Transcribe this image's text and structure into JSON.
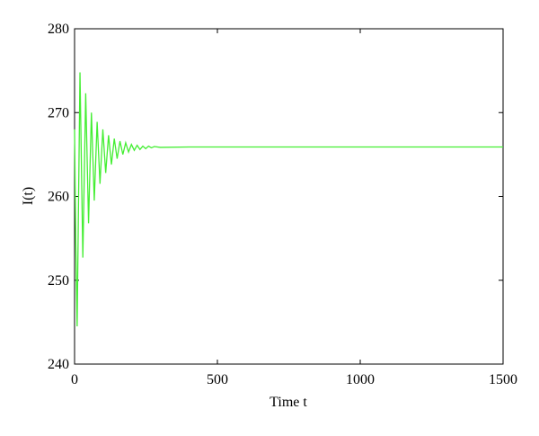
{
  "chart_data": {
    "type": "line",
    "x_label": "Time t",
    "y_label": "I(t)",
    "x": [
      0,
      4,
      9,
      19,
      29,
      39,
      49,
      59,
      69,
      79,
      89,
      99,
      109,
      119,
      129,
      139,
      149,
      159,
      169,
      179,
      189,
      199,
      209,
      219,
      229,
      239,
      249,
      259,
      269,
      279,
      300,
      400,
      500,
      1000,
      1500
    ],
    "series": [
      {
        "name": "I(t)",
        "color": "#44ee33",
        "values": [
          268,
          255,
          244.5,
          274.8,
          252.7,
          272.3,
          256.8,
          270.0,
          259.5,
          268.9,
          261.5,
          268.0,
          262.8,
          267.3,
          263.8,
          266.9,
          264.5,
          266.6,
          265.0,
          266.4,
          265.3,
          266.2,
          265.5,
          266.1,
          265.6,
          266.0,
          265.7,
          266.0,
          265.8,
          265.95,
          265.85,
          265.9,
          265.9,
          265.9,
          265.9
        ]
      }
    ],
    "xlim": [
      0,
      1500
    ],
    "ylim": [
      240,
      280
    ],
    "xticks": [
      0,
      500,
      1000,
      1500
    ],
    "yticks": [
      240,
      250,
      260,
      270,
      280
    ]
  }
}
